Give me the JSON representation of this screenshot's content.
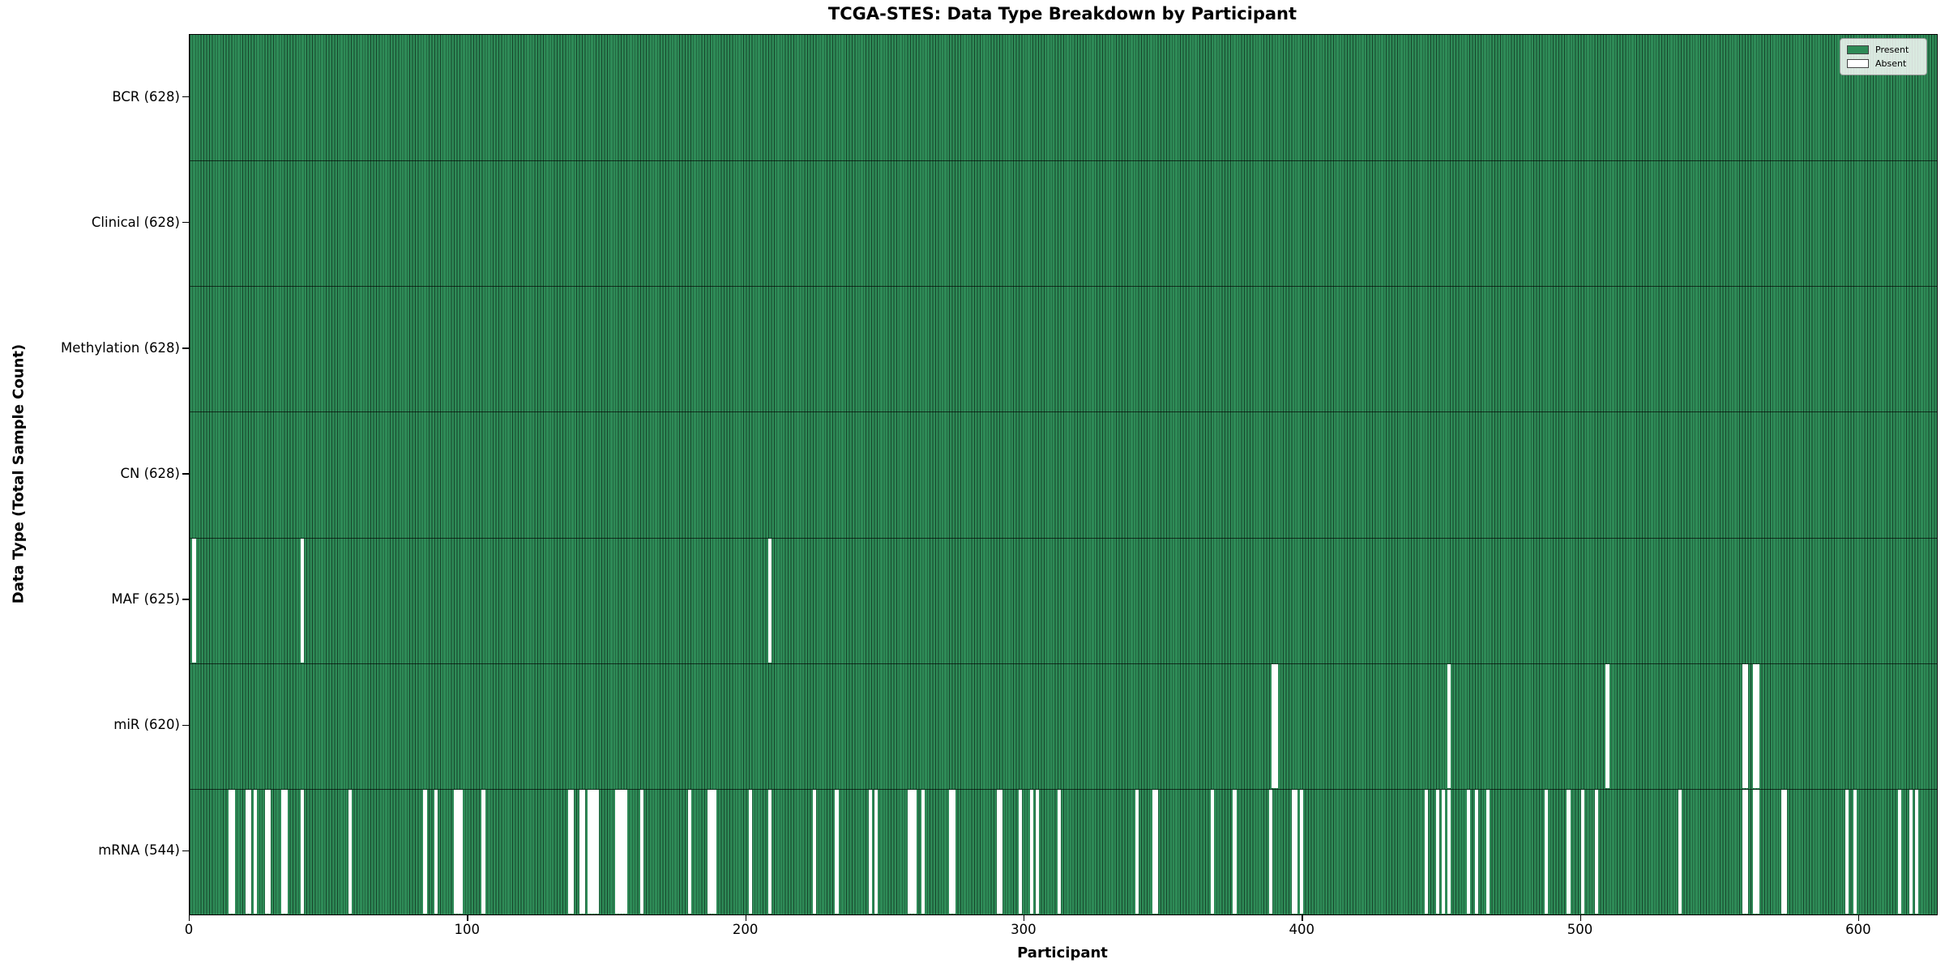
{
  "title": "TCGA-STES: Data Type Breakdown by Participant",
  "x_axis_label": "Participant",
  "y_axis_label": "Data Type (Total Sample Count)",
  "legend": {
    "present_label": "Present",
    "absent_label": "Absent"
  },
  "colors": {
    "present": "#2e8b57",
    "absent": "#ffffff",
    "bar_edge_line": "rgba(0,0,0,0.5)",
    "row_divider": "rgba(0,0,0,0.65)",
    "plot_border": "#000000",
    "legend_border": "#9a9a9a"
  },
  "chart_data": {
    "type": "heatmap",
    "title": "TCGA-STES: Data Type Breakdown by Participant",
    "xlabel": "Participant",
    "ylabel": "Data Type (Total Sample Count)",
    "legend_entries": [
      {
        "label": "Present",
        "color": "#2e8b57"
      },
      {
        "label": "Absent",
        "color": "#ffffff"
      }
    ],
    "legend_position": "upper right",
    "n_participants": 628,
    "x_range": [
      0,
      628
    ],
    "x_ticks": [
      0,
      100,
      200,
      300,
      400,
      500,
      600
    ],
    "rows": [
      {
        "key": "bcr",
        "label": "BCR",
        "total": 628,
        "tick_label": "BCR (628)",
        "absent_participants": []
      },
      {
        "key": "clinical",
        "label": "Clinical",
        "total": 628,
        "tick_label": "Clinical (628)",
        "absent_participants": []
      },
      {
        "key": "methylation",
        "label": "Methylation",
        "total": 628,
        "tick_label": "Methylation (628)",
        "absent_participants": []
      },
      {
        "key": "cn",
        "label": "CN",
        "total": 628,
        "tick_label": "CN (628)",
        "absent_participants": []
      },
      {
        "key": "maf",
        "label": "MAF",
        "total": 625,
        "tick_label": "MAF (625)",
        "absent_participants": [
          1,
          40,
          208
        ]
      },
      {
        "key": "mir",
        "label": "miR",
        "total": 620,
        "tick_label": "miR (620)",
        "absent_participants": [
          389,
          390,
          452,
          509,
          558,
          559,
          562,
          563
        ]
      },
      {
        "key": "mrna",
        "label": "mRNA",
        "total": 544,
        "tick_label": "mRNA (544)",
        "absent_participants": [
          14,
          15,
          20,
          21,
          23,
          27,
          28,
          33,
          34,
          40,
          57,
          84,
          88,
          95,
          96,
          97,
          105,
          136,
          137,
          140,
          141,
          143,
          144,
          145,
          146,
          153,
          154,
          155,
          156,
          162,
          179,
          186,
          187,
          188,
          201,
          208,
          224,
          232,
          244,
          246,
          258,
          259,
          260,
          263,
          273,
          274,
          290,
          291,
          298,
          302,
          304,
          312,
          340,
          346,
          347,
          367,
          375,
          388,
          396,
          397,
          399,
          444,
          448,
          450,
          452,
          459,
          462,
          466,
          487,
          495,
          500,
          505,
          535,
          558,
          559,
          562,
          563,
          572,
          573,
          595,
          598,
          614,
          618,
          620
        ]
      }
    ]
  }
}
